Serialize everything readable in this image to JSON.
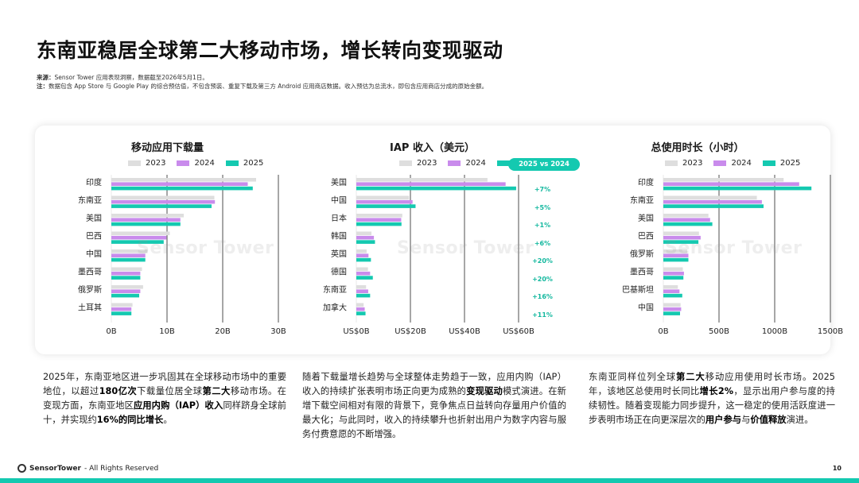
{
  "page": {
    "title": "东南亚稳居全球第二大移动市场，增长转向变现驱动",
    "source_label": "来源：",
    "source_text": "Sensor Tower 应用表现洞察，数据截至2026年5月1日。",
    "note_label": "注：",
    "note_text": "数据包含 App Store 与 Google Play 的综合预估值，不包含预装、重复下载及第三方 Android 应用商店数据。收入预估为总流水，即包含应用商店分成的原始金额。",
    "watermark": "Sensor Tower",
    "yoy_badge": "2025 vs 2024",
    "footer_brand": "SensorTower",
    "footer_rights": "- All Rights Reserved",
    "page_number": "10"
  },
  "colors": {
    "2023": "#dedede",
    "2024": "#c98bec",
    "2025": "#14c9b0",
    "accent": "#14c9b0"
  },
  "legend": [
    "2023",
    "2024",
    "2025"
  ],
  "chart_data": [
    {
      "type": "bar",
      "orientation": "horizontal",
      "title": "移动应用下载量",
      "categories": [
        "印度",
        "东南亚",
        "美国",
        "巴西",
        "中国",
        "墨西哥",
        "俄罗斯",
        "土耳其"
      ],
      "series": [
        {
          "name": "2023",
          "values": [
            26,
            18.5,
            13,
            10.5,
            6.5,
            5.5,
            5.7,
            3.8
          ]
        },
        {
          "name": "2024",
          "values": [
            24.5,
            18.6,
            12.4,
            9.9,
            6.1,
            5.2,
            5.2,
            3.6
          ]
        },
        {
          "name": "2025",
          "values": [
            25.4,
            18,
            12.4,
            9.4,
            6.1,
            5.2,
            5,
            3.6
          ]
        }
      ],
      "xlim": [
        0,
        30
      ],
      "xticks": [
        0,
        10,
        20,
        30
      ],
      "xtick_labels": [
        "0B",
        "10B",
        "20B",
        "30B"
      ]
    },
    {
      "type": "bar",
      "orientation": "horizontal",
      "title": "IAP 收入（美元）",
      "categories": [
        "美国",
        "中国",
        "日本",
        "韩国",
        "英国",
        "德国",
        "东南亚",
        "加拿大"
      ],
      "series": [
        {
          "name": "2023",
          "values": [
            48.5,
            19.5,
            17,
            5.6,
            3.8,
            4.3,
            3.6,
            2.7
          ]
        },
        {
          "name": "2024",
          "values": [
            55.2,
            20.8,
            16.6,
            6.5,
            4.5,
            5.1,
            4.4,
            3.1
          ]
        },
        {
          "name": "2025",
          "values": [
            59.1,
            21.9,
            16.7,
            6.9,
            5.4,
            6.1,
            5.1,
            3.4
          ]
        }
      ],
      "yoy_labels": [
        "+7%",
        "+5%",
        "+1%",
        "+6%",
        "+20%",
        "+20%",
        "+16%",
        "+11%"
      ],
      "xlim": [
        0,
        60
      ],
      "xticks": [
        0,
        20,
        40,
        60
      ],
      "xtick_labels": [
        "US$0B",
        "US$20B",
        "US$40B",
        "US$60B"
      ]
    },
    {
      "type": "bar",
      "orientation": "horizontal",
      "title": "总使用时长（小时）",
      "categories": [
        "印度",
        "东南亚",
        "美国",
        "巴西",
        "俄罗斯",
        "墨西哥",
        "巴基斯坦",
        "中国"
      ],
      "series": [
        {
          "name": "2023",
          "values": [
            1080,
            840,
            405,
            320,
            215,
            175,
            130,
            155
          ]
        },
        {
          "name": "2024",
          "values": [
            1220,
            885,
            420,
            335,
            225,
            185,
            145,
            160
          ]
        },
        {
          "name": "2025",
          "values": [
            1330,
            900,
            440,
            315,
            225,
            180,
            170,
            150
          ]
        }
      ],
      "xlim": [
        0,
        1500
      ],
      "xticks": [
        0,
        500,
        1000,
        1500
      ],
      "xtick_labels": [
        "0B",
        "500B",
        "1000B",
        "1500B"
      ]
    }
  ],
  "paragraphs": [
    [
      {
        "t": "2025年，东南亚地区进一步巩固其在全球移动市场中的重要地位，以超过"
      },
      {
        "t": "180亿次",
        "b": true
      },
      {
        "t": "下载量位居全球"
      },
      {
        "t": "第二大",
        "b": true
      },
      {
        "t": "移动市场。在变现方面，东南亚地区"
      },
      {
        "t": "应用内购（IAP）收入",
        "b": true
      },
      {
        "t": "同样跻身全球前十，并实现约"
      },
      {
        "t": "16%的同比增长",
        "b": true
      },
      {
        "t": "。"
      }
    ],
    [
      {
        "t": "随着下载量增长趋势与全球整体走势趋于一致，应用内购（IAP）收入的持续扩张表明市场正向更为成熟的"
      },
      {
        "t": "变现驱动",
        "b": true
      },
      {
        "t": "模式演进。在新增下载空间相对有限的背景下，竞争焦点日益转向存量用户价值的最大化；与此同时，收入的持续攀升也折射出用户为数字内容与服务付费意愿的不断增强。"
      }
    ],
    [
      {
        "t": "东南亚同样位列全球"
      },
      {
        "t": "第二大",
        "b": true
      },
      {
        "t": "移动应用使用时长市场。2025年，该地区总使用时长同比"
      },
      {
        "t": "增长2%",
        "b": true
      },
      {
        "t": "，显示出用户参与度的持续韧性。随着变现能力同步提升，这一稳定的使用活跃度进一步表明市场正在向更深层次的"
      },
      {
        "t": "用户参与",
        "b": true
      },
      {
        "t": "与"
      },
      {
        "t": "价值释放",
        "b": true
      },
      {
        "t": "演进。"
      }
    ]
  ]
}
